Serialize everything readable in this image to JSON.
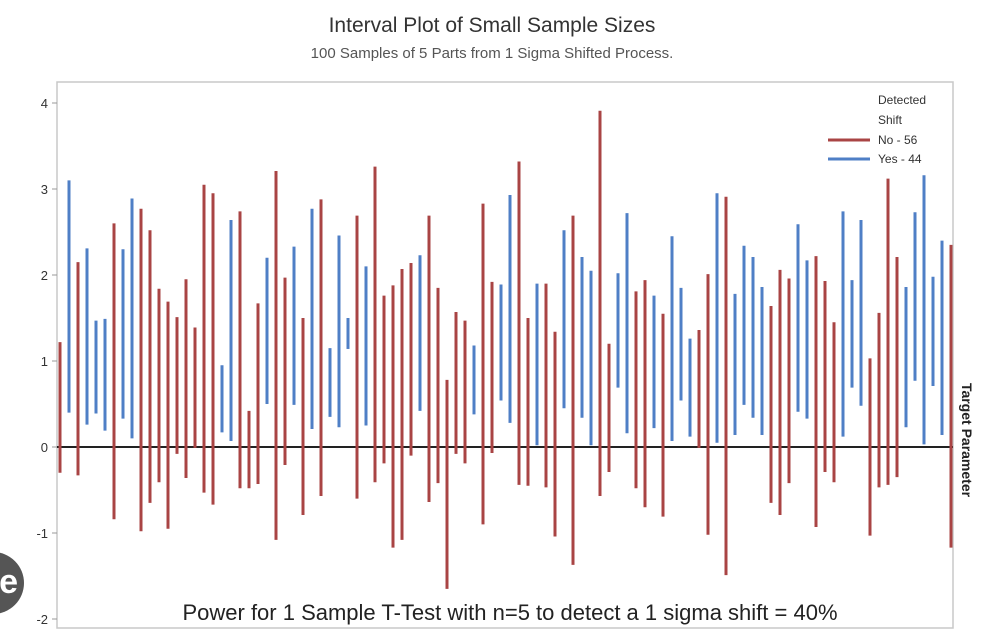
{
  "chart_data": {
    "type": "interval",
    "title": "Interval Plot of Small Sample Sizes",
    "subtitle": "100 Samples of 5 Parts from 1 Sigma Shifted Process.",
    "ylabel_right": "Target Parameter",
    "annotation": "Power for 1 Sample T-Test with n=5 to detect a 1 sigma shift = 40%",
    "ylim": [
      -2,
      4
    ],
    "yticks": [
      -2,
      -1,
      0,
      1,
      2,
      3,
      4
    ],
    "reference_line": 0,
    "grid": false,
    "legend": {
      "title": "Detected Shift",
      "position": "top-right",
      "entries": [
        {
          "key": "No",
          "label": "No - 56",
          "color": "#a94444"
        },
        {
          "key": "Yes",
          "label": "Yes - 44",
          "color": "#4f7fc6"
        }
      ]
    },
    "intervals": [
      [
        "No",
        1.22,
        -0.3
      ],
      [
        "Yes",
        3.1,
        0.4
      ],
      [
        "No",
        2.15,
        -0.33
      ],
      [
        "Yes",
        2.31,
        0.26
      ],
      [
        "Yes",
        1.47,
        0.39
      ],
      [
        "Yes",
        1.49,
        0.19
      ],
      [
        "No",
        2.6,
        -0.84
      ],
      [
        "Yes",
        2.3,
        0.33
      ],
      [
        "Yes",
        2.89,
        0.1
      ],
      [
        "No",
        2.77,
        -0.98
      ],
      [
        "No",
        2.52,
        -0.65
      ],
      [
        "No",
        1.84,
        -0.41
      ],
      [
        "No",
        1.69,
        -0.95
      ],
      [
        "No",
        1.51,
        -0.08
      ],
      [
        "No",
        1.95,
        -0.36
      ],
      [
        "No",
        1.39,
        -0.01
      ],
      [
        "No",
        3.05,
        -0.53
      ],
      [
        "No",
        2.95,
        -0.67
      ],
      [
        "Yes",
        0.95,
        0.17
      ],
      [
        "Yes",
        2.64,
        0.07
      ],
      [
        "No",
        2.74,
        -0.48
      ],
      [
        "No",
        0.42,
        -0.48
      ],
      [
        "No",
        1.67,
        -0.43
      ],
      [
        "Yes",
        2.2,
        0.5
      ],
      [
        "No",
        3.21,
        -1.08
      ],
      [
        "No",
        1.97,
        -0.21
      ],
      [
        "Yes",
        2.33,
        0.49
      ],
      [
        "No",
        1.5,
        -0.79
      ],
      [
        "Yes",
        2.77,
        0.21
      ],
      [
        "No",
        2.88,
        -0.57
      ],
      [
        "Yes",
        1.15,
        0.35
      ],
      [
        "Yes",
        2.46,
        0.23
      ],
      [
        "Yes",
        1.5,
        1.14
      ],
      [
        "No",
        2.69,
        -0.6
      ],
      [
        "Yes",
        2.1,
        0.25
      ],
      [
        "No",
        3.26,
        -0.41
      ],
      [
        "No",
        1.76,
        -0.19
      ],
      [
        "No",
        1.88,
        -1.17
      ],
      [
        "No",
        2.07,
        -1.08
      ],
      [
        "No",
        2.14,
        -0.1
      ],
      [
        "Yes",
        2.23,
        0.42
      ],
      [
        "No",
        2.69,
        -0.64
      ],
      [
        "No",
        1.85,
        -0.42
      ],
      [
        "No",
        0.78,
        -1.65
      ],
      [
        "No",
        1.57,
        -0.08
      ],
      [
        "No",
        1.47,
        -0.19
      ],
      [
        "Yes",
        1.18,
        0.38
      ],
      [
        "No",
        2.83,
        -0.9
      ],
      [
        "No",
        1.92,
        -0.07
      ],
      [
        "Yes",
        1.89,
        0.54
      ],
      [
        "Yes",
        2.93,
        0.28
      ],
      [
        "No",
        3.32,
        -0.44
      ],
      [
        "No",
        1.5,
        -0.45
      ],
      [
        "Yes",
        1.9,
        0.02
      ],
      [
        "No",
        1.9,
        -0.47
      ],
      [
        "No",
        1.34,
        -1.04
      ],
      [
        "Yes",
        2.52,
        0.45
      ],
      [
        "No",
        2.69,
        -1.37
      ],
      [
        "Yes",
        2.21,
        0.34
      ],
      [
        "Yes",
        2.05,
        0.02
      ],
      [
        "No",
        3.91,
        -0.57
      ],
      [
        "No",
        1.2,
        -0.29
      ],
      [
        "Yes",
        2.02,
        0.69
      ],
      [
        "Yes",
        2.72,
        0.16
      ],
      [
        "No",
        1.81,
        -0.48
      ],
      [
        "No",
        1.94,
        -0.7
      ],
      [
        "Yes",
        1.76,
        0.22
      ],
      [
        "No",
        1.55,
        -0.81
      ],
      [
        "Yes",
        2.45,
        0.07
      ],
      [
        "Yes",
        1.85,
        0.54
      ],
      [
        "Yes",
        1.26,
        0.12
      ],
      [
        "No",
        1.36,
        -0.01
      ],
      [
        "No",
        2.01,
        -1.02
      ],
      [
        "Yes",
        2.95,
        0.05
      ],
      [
        "No",
        2.91,
        -1.49
      ],
      [
        "Yes",
        1.78,
        0.14
      ],
      [
        "Yes",
        2.34,
        0.49
      ],
      [
        "Yes",
        2.21,
        0.34
      ],
      [
        "Yes",
        1.86,
        0.14
      ],
      [
        "No",
        1.64,
        -0.65
      ],
      [
        "No",
        2.06,
        -0.79
      ],
      [
        "No",
        1.96,
        -0.42
      ],
      [
        "Yes",
        2.59,
        0.41
      ],
      [
        "Yes",
        2.17,
        0.33
      ],
      [
        "No",
        2.22,
        -0.93
      ],
      [
        "No",
        1.93,
        -0.29
      ],
      [
        "No",
        1.45,
        -0.41
      ],
      [
        "Yes",
        2.74,
        0.12
      ],
      [
        "Yes",
        1.94,
        0.69
      ],
      [
        "Yes",
        2.64,
        0.48
      ],
      [
        "No",
        1.03,
        -1.03
      ],
      [
        "No",
        1.56,
        -0.47
      ],
      [
        "No",
        3.12,
        -0.44
      ],
      [
        "No",
        2.21,
        -0.35
      ],
      [
        "Yes",
        1.86,
        0.23
      ],
      [
        "Yes",
        2.73,
        0.77
      ],
      [
        "Yes",
        3.16,
        0.03
      ],
      [
        "Yes",
        1.98,
        0.71
      ],
      [
        "Yes",
        2.4,
        0.14
      ],
      [
        "No",
        2.35,
        -1.17
      ]
    ]
  },
  "overlay": {
    "badge_glyph": "e",
    "icon": "circle-badge-icon"
  }
}
